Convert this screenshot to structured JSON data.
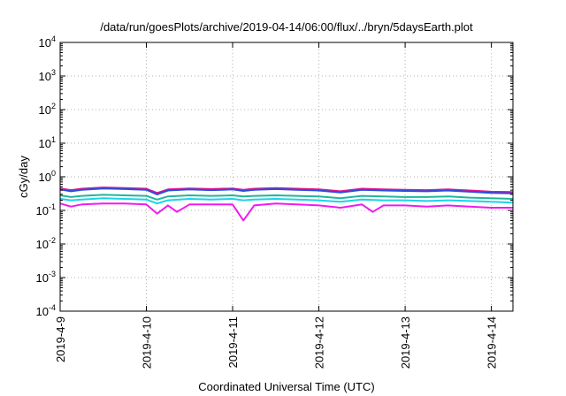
{
  "chart_data": {
    "type": "line",
    "title": "/data/run/goesPlots/archive/2019-04-14/06:00/flux/../bryn/5daysEarth.plot",
    "xlabel": "Coordinated Universal Time (UTC)",
    "ylabel": "cGy/day",
    "yscale": "log",
    "ylim": [
      0.0001,
      10000
    ],
    "xlim": [
      "2019-04-09 00:00",
      "2019-04-14 06:00"
    ],
    "grid": true,
    "y_ticks": [
      {
        "base": "10",
        "exp": "-4",
        "value": 0.0001
      },
      {
        "base": "10",
        "exp": "-3",
        "value": 0.001
      },
      {
        "base": "10",
        "exp": "-2",
        "value": 0.01
      },
      {
        "base": "10",
        "exp": "-1",
        "value": 0.1
      },
      {
        "base": "10",
        "exp": "0",
        "value": 1
      },
      {
        "base": "10",
        "exp": "1",
        "value": 10
      },
      {
        "base": "10",
        "exp": "2",
        "value": 100
      },
      {
        "base": "10",
        "exp": "3",
        "value": 1000
      },
      {
        "base": "10",
        "exp": "4",
        "value": 10000
      }
    ],
    "x_ticks": [
      "2019-4-9",
      "2019-4-10",
      "2019-4-11",
      "2019-4-12",
      "2019-4-13",
      "2019-4-14"
    ],
    "series": [
      {
        "color": "#e0158c",
        "x": [
          "2019-04-09 00:00",
          "2019-04-09 03:00",
          "2019-04-09 06:00",
          "2019-04-09 12:00",
          "2019-04-09 18:00",
          "2019-04-10 00:00",
          "2019-04-10 03:00",
          "2019-04-10 06:00",
          "2019-04-10 12:00",
          "2019-04-10 18:00",
          "2019-04-11 00:00",
          "2019-04-11 03:00",
          "2019-04-11 06:00",
          "2019-04-11 12:00",
          "2019-04-11 18:00",
          "2019-04-12 00:00",
          "2019-04-12 06:00",
          "2019-04-12 12:00",
          "2019-04-12 18:00",
          "2019-04-13 00:00",
          "2019-04-13 06:00",
          "2019-04-13 12:00",
          "2019-04-13 18:00",
          "2019-04-14 00:00",
          "2019-04-14 06:00"
        ],
        "values": [
          0.45,
          0.4,
          0.44,
          0.48,
          0.46,
          0.44,
          0.33,
          0.42,
          0.45,
          0.43,
          0.45,
          0.41,
          0.44,
          0.46,
          0.44,
          0.42,
          0.37,
          0.44,
          0.42,
          0.41,
          0.4,
          0.42,
          0.39,
          0.36,
          0.35
        ]
      },
      {
        "color": "#2a4ddc",
        "x": [
          "2019-04-09 00:00",
          "2019-04-09 03:00",
          "2019-04-09 06:00",
          "2019-04-09 12:00",
          "2019-04-09 18:00",
          "2019-04-10 00:00",
          "2019-04-10 03:00",
          "2019-04-10 06:00",
          "2019-04-10 12:00",
          "2019-04-10 18:00",
          "2019-04-11 00:00",
          "2019-04-11 03:00",
          "2019-04-11 06:00",
          "2019-04-11 12:00",
          "2019-04-11 18:00",
          "2019-04-12 00:00",
          "2019-04-12 06:00",
          "2019-04-12 12:00",
          "2019-04-12 18:00",
          "2019-04-13 00:00",
          "2019-04-13 06:00",
          "2019-04-13 12:00",
          "2019-04-13 18:00",
          "2019-04-14 00:00",
          "2019-04-14 06:00"
        ],
        "values": [
          0.42,
          0.37,
          0.41,
          0.45,
          0.43,
          0.41,
          0.3,
          0.39,
          0.42,
          0.4,
          0.42,
          0.38,
          0.41,
          0.43,
          0.41,
          0.39,
          0.34,
          0.41,
          0.39,
          0.38,
          0.37,
          0.39,
          0.36,
          0.33,
          0.32
        ]
      },
      {
        "color": "#1fb89a",
        "x": [
          "2019-04-09 00:00",
          "2019-04-09 03:00",
          "2019-04-09 06:00",
          "2019-04-09 12:00",
          "2019-04-09 18:00",
          "2019-04-10 00:00",
          "2019-04-10 03:00",
          "2019-04-10 06:00",
          "2019-04-10 12:00",
          "2019-04-10 18:00",
          "2019-04-11 00:00",
          "2019-04-11 03:00",
          "2019-04-11 06:00",
          "2019-04-11 12:00",
          "2019-04-11 18:00",
          "2019-04-12 00:00",
          "2019-04-12 06:00",
          "2019-04-12 12:00",
          "2019-04-12 18:00",
          "2019-04-13 00:00",
          "2019-04-13 06:00",
          "2019-04-13 12:00",
          "2019-04-13 18:00",
          "2019-04-14 00:00",
          "2019-04-14 06:00"
        ],
        "values": [
          0.28,
          0.25,
          0.27,
          0.29,
          0.28,
          0.27,
          0.21,
          0.26,
          0.28,
          0.27,
          0.28,
          0.26,
          0.27,
          0.28,
          0.27,
          0.26,
          0.23,
          0.27,
          0.26,
          0.25,
          0.25,
          0.26,
          0.24,
          0.23,
          0.22
        ]
      },
      {
        "color": "#1ad4e8",
        "x": [
          "2019-04-09 00:00",
          "2019-04-09 03:00",
          "2019-04-09 06:00",
          "2019-04-09 12:00",
          "2019-04-09 18:00",
          "2019-04-10 00:00",
          "2019-04-10 03:00",
          "2019-04-10 06:00",
          "2019-04-10 12:00",
          "2019-04-10 18:00",
          "2019-04-11 00:00",
          "2019-04-11 03:00",
          "2019-04-11 06:00",
          "2019-04-11 12:00",
          "2019-04-11 18:00",
          "2019-04-12 00:00",
          "2019-04-12 06:00",
          "2019-04-12 12:00",
          "2019-04-12 18:00",
          "2019-04-13 00:00",
          "2019-04-13 06:00",
          "2019-04-13 12:00",
          "2019-04-13 18:00",
          "2019-04-14 00:00",
          "2019-04-14 06:00"
        ],
        "values": [
          0.22,
          0.2,
          0.21,
          0.23,
          0.22,
          0.21,
          0.16,
          0.2,
          0.22,
          0.21,
          0.22,
          0.2,
          0.21,
          0.22,
          0.21,
          0.2,
          0.18,
          0.21,
          0.2,
          0.2,
          0.19,
          0.2,
          0.19,
          0.18,
          0.17
        ]
      },
      {
        "color": "#f01af0",
        "x": [
          "2019-04-09 00:00",
          "2019-04-09 03:00",
          "2019-04-09 06:00",
          "2019-04-09 12:00",
          "2019-04-09 18:00",
          "2019-04-10 00:00",
          "2019-04-10 03:00",
          "2019-04-10 06:00",
          "2019-04-10 08:30",
          "2019-04-10 12:00",
          "2019-04-10 18:00",
          "2019-04-11 00:00",
          "2019-04-11 03:00",
          "2019-04-11 06:00",
          "2019-04-11 12:00",
          "2019-04-11 18:00",
          "2019-04-12 00:00",
          "2019-04-12 06:00",
          "2019-04-12 12:00",
          "2019-04-12 15:00",
          "2019-04-12 18:00",
          "2019-04-13 00:00",
          "2019-04-13 06:00",
          "2019-04-13 12:00",
          "2019-04-13 18:00",
          "2019-04-14 00:00",
          "2019-04-14 06:00"
        ],
        "values": [
          0.16,
          0.13,
          0.15,
          0.16,
          0.16,
          0.15,
          0.08,
          0.14,
          0.09,
          0.15,
          0.15,
          0.15,
          0.05,
          0.14,
          0.16,
          0.15,
          0.14,
          0.12,
          0.15,
          0.09,
          0.14,
          0.14,
          0.13,
          0.14,
          0.13,
          0.12,
          0.12
        ]
      }
    ]
  }
}
